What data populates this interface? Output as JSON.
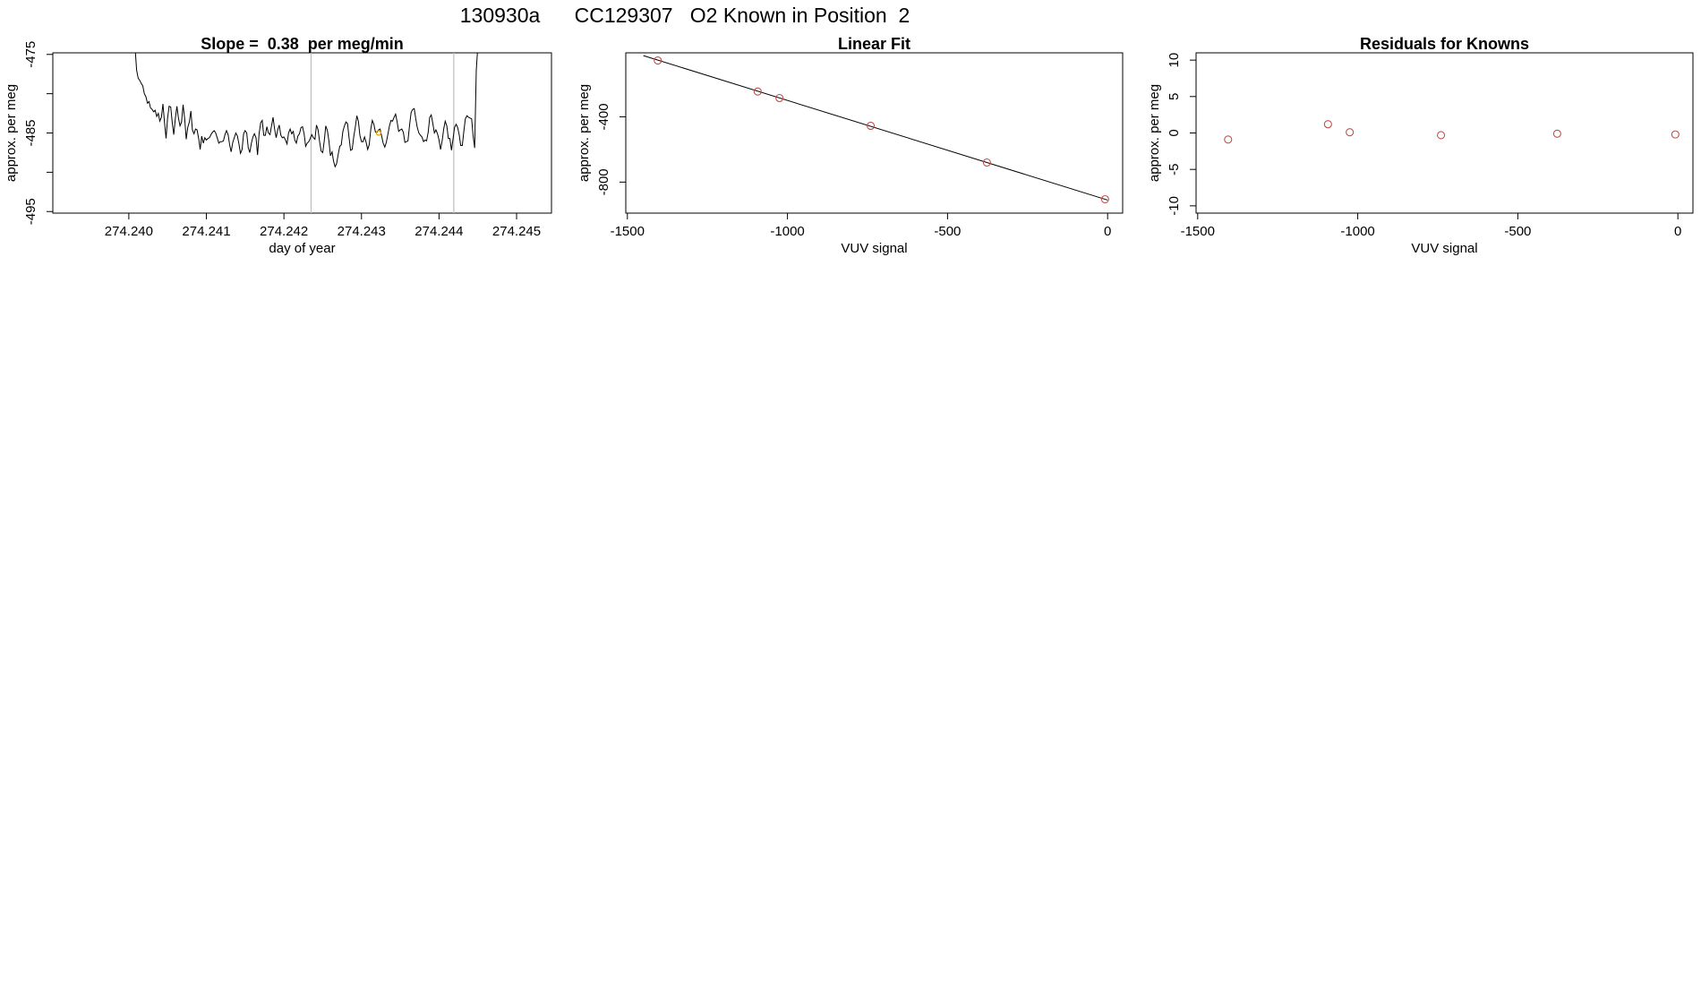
{
  "figure": {
    "title": "130930a      CC129307   O2 Known in Position  2"
  },
  "colors": {
    "trace": "#000000",
    "points": "#c0504d",
    "highlight_point": "#e69f00",
    "marker_line": "#bebebe",
    "fit_line": "#000000"
  },
  "chart_data": [
    {
      "type": "line",
      "title": "Slope =  0.38  per meg/min",
      "xlabel": "day of year",
      "ylabel": "approx. per meg",
      "xlim": [
        274.23902,
        274.24545
      ],
      "ylim": [
        -495.2,
        -474.8
      ],
      "y_reversed": true,
      "xticks": [
        274.24,
        274.241,
        274.242,
        274.243,
        274.244,
        274.245
      ],
      "xtick_labels": [
        "274.240",
        "274.241",
        "274.242",
        "274.243",
        "274.244",
        "274.245"
      ],
      "yticks": [
        -475,
        -480,
        -485,
        -490,
        -495
      ],
      "ytick_labels": [
        "-475",
        "",
        "-485",
        "",
        "-495"
      ],
      "vertical_markers": [
        274.24235,
        274.24419
      ],
      "highlight_point": {
        "x": 274.24322,
        "y": -485
      },
      "series": [
        {
          "x_start": 274.24008,
          "x_step": 2e-05,
          "y": [
            -474,
            -477,
            -478,
            -478.3,
            -478.7,
            -479,
            -480,
            -480.4,
            -481.2,
            -481.0,
            -481.8,
            -482.0,
            -482.3,
            -482.1,
            -482.9,
            -482.5,
            -483.5,
            -483.0,
            -481.3,
            -483.6,
            -485.7,
            -483.1,
            -481.6,
            -481.7,
            -483.7,
            -485.2,
            -483.1,
            -481.6,
            -483.1,
            -484.1,
            -483.6,
            -481.4,
            -483.2,
            -485.8,
            -484.3,
            -483.6,
            -482.2,
            -484.6,
            -485.1,
            -484.5,
            -484.6,
            -485.7,
            -487.1,
            -485.4,
            -486.3,
            -485.6,
            -485.9,
            -485.7,
            -485.6,
            -485.2,
            -484.9,
            -484.7,
            -485.0,
            -485.6,
            -486.3,
            -486.1,
            -486.1,
            -486.0,
            -485.2,
            -484.7,
            -485.2,
            -486.5,
            -487.4,
            -486.2,
            -485.6,
            -485.0,
            -485.4,
            -486.4,
            -487.6,
            -487.1,
            -485.1,
            -484.7,
            -485.0,
            -486.9,
            -487.5,
            -486.3,
            -485.5,
            -485.1,
            -485.6,
            -487.8,
            -485.1,
            -483.7,
            -483.4,
            -485.3,
            -485.3,
            -484.2,
            -485.0,
            -485.2,
            -484.1,
            -483.0,
            -484.5,
            -485.6,
            -484.6,
            -484.0,
            -485.3,
            -485.6,
            -485.5,
            -485.9,
            -486.4,
            -485.0,
            -484.5,
            -485.1,
            -484.8,
            -485.9,
            -486.3,
            -485.4,
            -485.1,
            -484.3,
            -484.2,
            -485.1,
            -486.7,
            -486.3,
            -486.1,
            -485.7,
            -485.2,
            -485.6,
            -485.8,
            -484.0,
            -484.6,
            -486.1,
            -487.3,
            -487.5,
            -486.0,
            -484.1,
            -484.7,
            -486.0,
            -487.9,
            -487.4,
            -488.6,
            -489.3,
            -488.9,
            -487.7,
            -486.7,
            -486.5,
            -484.8,
            -484.1,
            -483.6,
            -483.8,
            -485.6,
            -487.2,
            -487.1,
            -485.5,
            -484.3,
            -482.8,
            -483.5,
            -485.3,
            -486.1,
            -486.1,
            -485.5,
            -486.2,
            -487.1,
            -486.5,
            -484.5,
            -483.4,
            -483.9,
            -484.9,
            -484.9,
            -484.6,
            -484.5,
            -485.4,
            -486.3,
            -486.8,
            -486.2,
            -485.2,
            -484.1,
            -483.4,
            -483.5,
            -483.0,
            -482.6,
            -483.6,
            -484.8,
            -484.6,
            -484.5,
            -484.9,
            -486.2,
            -486.1,
            -486.0,
            -484.0,
            -482.4,
            -482.0,
            -481.9,
            -483.2,
            -484.3,
            -485.0,
            -485.3,
            -485.5,
            -486.1,
            -485.9,
            -486.0,
            -484.9,
            -483.0,
            -482.7,
            -483.8,
            -485.0,
            -484.6,
            -485.1,
            -485.9,
            -487.1,
            -486.0,
            -484.5,
            -483.5,
            -484.1,
            -485.7,
            -485.7,
            -487.2,
            -485.8,
            -484.3,
            -483.9,
            -484.3,
            -485.2,
            -486.6,
            -486.6,
            -484.8,
            -483.2,
            -482.8,
            -483.0,
            -483.1,
            -483.2,
            -485.4,
            -486.9,
            -477,
            -474
          ]
        }
      ]
    },
    {
      "type": "scatter",
      "title": "Linear Fit",
      "xlabel": "VUV signal",
      "ylabel": "approx. per meg",
      "xlim": [
        -1505,
        47
      ],
      "ylim": [
        -990,
        -8
      ],
      "y_reversed": true,
      "xticks": [
        -1500,
        -1000,
        -500,
        0
      ],
      "xtick_labels": [
        "-1500",
        "-1000",
        "-500",
        "0"
      ],
      "yticks": [
        -400,
        -800
      ],
      "ytick_labels": [
        "-400",
        "-800"
      ],
      "series": [
        {
          "name": "",
          "x": [
            -1405,
            -1093,
            -1025,
            -740,
            -377,
            -8
          ],
          "y": [
            -55,
            -245,
            -285,
            -455,
            -680,
            -905
          ]
        }
      ],
      "fit_line": {
        "x": [
          -1450,
          0
        ],
        "y": [
          -25,
          -910
        ]
      }
    },
    {
      "type": "scatter",
      "title": "Residuals for Knowns",
      "xlabel": "VUV signal",
      "ylabel": "approx. per meg",
      "xlim": [
        -1505,
        47
      ],
      "ylim": [
        -11,
        11
      ],
      "xticks": [
        -1500,
        -1000,
        -500,
        0
      ],
      "xtick_labels": [
        "-1500",
        "-1000",
        "-500",
        "0"
      ],
      "yticks": [
        -10,
        -5,
        0,
        5,
        10
      ],
      "ytick_labels": [
        "-10",
        "-5",
        "0",
        "5",
        "10"
      ],
      "series": [
        {
          "name": "",
          "x": [
            -1405,
            -1093,
            -1025,
            -740,
            -377,
            -8
          ],
          "y": [
            -0.9,
            1.2,
            0.1,
            -0.3,
            -0.1,
            -0.2
          ]
        }
      ]
    }
  ]
}
